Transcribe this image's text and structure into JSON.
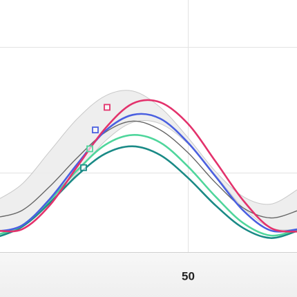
{
  "chart_data": {
    "type": "line",
    "x": [
      -20,
      -10,
      0,
      10,
      20,
      30,
      40,
      50,
      60,
      70,
      80,
      90
    ],
    "xlim": [
      -18,
      89.5
    ],
    "xticks": [
      50
    ],
    "ylim": [
      -0.632,
      1.374
    ],
    "yticks": [
      0,
      1
    ],
    "grid": true,
    "band": {
      "color": "#ececec",
      "upper": [
        -0.23,
        -0.09,
        0.17,
        0.43,
        0.61,
        0.65,
        0.52,
        0.28,
        0.01,
        -0.19,
        -0.25,
        -0.13
      ],
      "lower": [
        -0.46,
        -0.43,
        -0.25,
        0.0,
        0.25,
        0.4,
        0.39,
        0.23,
        -0.02,
        -0.28,
        -0.44,
        -0.45
      ]
    },
    "series": [
      {
        "color": "#666666",
        "values": [
          -0.36,
          -0.3,
          -0.11,
          0.12,
          0.32,
          0.41,
          0.34,
          0.16,
          -0.08,
          -0.28,
          -0.36,
          -0.3
        ]
      },
      {
        "color": "#1a8a86",
        "values": [
          -0.52,
          -0.43,
          -0.24,
          -0.02,
          0.15,
          0.21,
          0.14,
          -0.04,
          -0.26,
          -0.44,
          -0.52,
          -0.46
        ],
        "marker": {
          "x": 12.25,
          "y": 0.04
        }
      },
      {
        "color": "#4fd69c",
        "values": [
          -0.5,
          -0.42,
          -0.22,
          0.02,
          0.22,
          0.3,
          0.24,
          0.05,
          -0.19,
          -0.4,
          -0.5,
          -0.45
        ],
        "marker": {
          "x": 14.5,
          "y": 0.19
        }
      },
      {
        "color": "#4a5fe0",
        "values": [
          -0.47,
          -0.42,
          -0.21,
          0.07,
          0.33,
          0.46,
          0.43,
          0.24,
          -0.03,
          -0.3,
          -0.46,
          -0.45
        ],
        "marker": {
          "x": 16.5,
          "y": 0.34
        }
      },
      {
        "color": "#e3326c",
        "values": [
          -0.46,
          -0.45,
          -0.26,
          0.05,
          0.35,
          0.55,
          0.56,
          0.39,
          0.09,
          -0.22,
          -0.44,
          -0.47
        ],
        "marker": {
          "x": 20.75,
          "y": 0.52
        }
      }
    ]
  }
}
